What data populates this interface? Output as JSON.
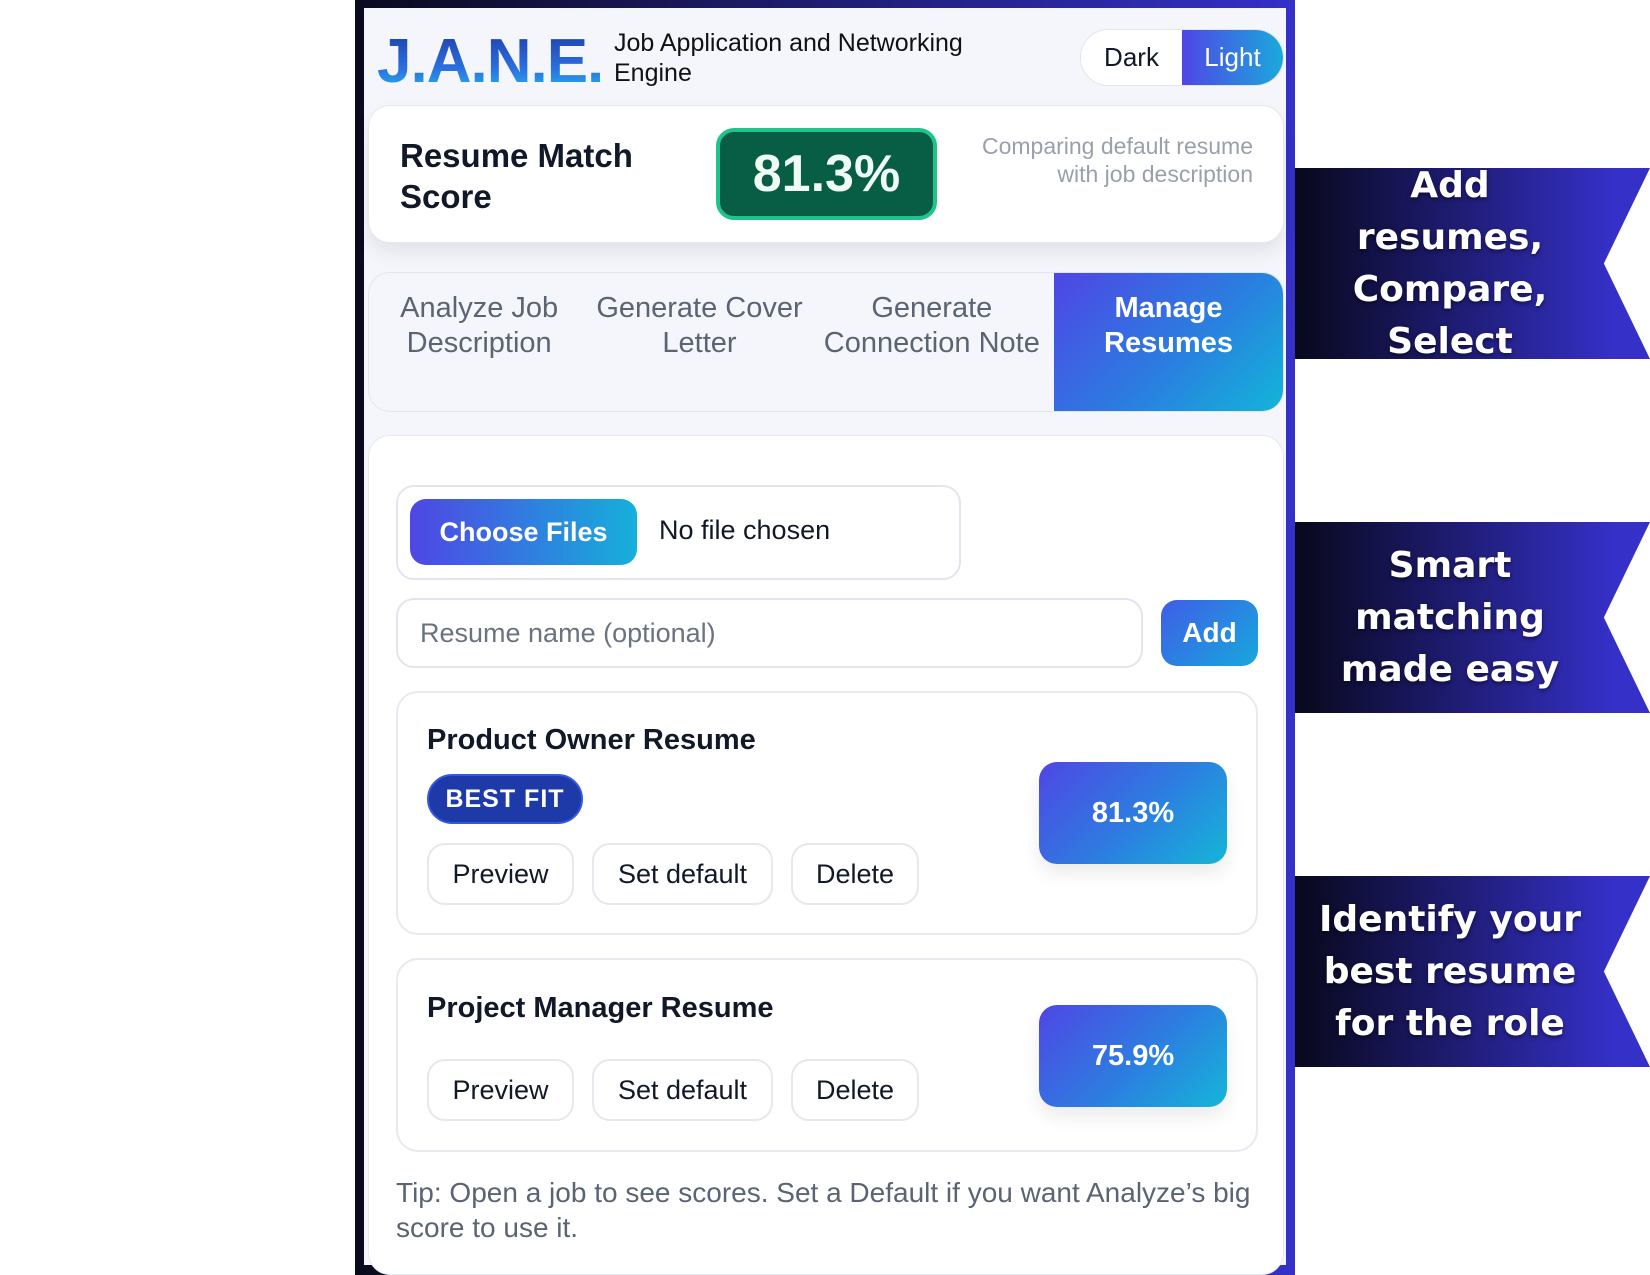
{
  "header": {
    "logo": "J.A.N.E.",
    "subtitle": "Job Application and Networking Engine",
    "theme_toggle": {
      "options": [
        "Dark",
        "Light"
      ],
      "selected": "Light"
    }
  },
  "score": {
    "title": "Resume Match Score",
    "value": "81.3%",
    "note": "Comparing default resume with job description"
  },
  "tabs": [
    {
      "label": "Analyze Job Description"
    },
    {
      "label": "Generate Cover Letter"
    },
    {
      "label": "Generate Connection Note"
    },
    {
      "label": "Manage Resumes",
      "active": true
    }
  ],
  "manage": {
    "choose_files": "Choose Files",
    "no_file": "No file chosen",
    "name_placeholder": "Resume name (optional)",
    "add": "Add",
    "resumes": [
      {
        "name": "Product Owner Resume",
        "badge": "BEST FIT",
        "score": "81.3%",
        "actions": [
          "Preview",
          "Set default",
          "Delete"
        ]
      },
      {
        "name": "Project Manager Resume",
        "score": "75.9%",
        "actions": [
          "Preview",
          "Set default",
          "Delete"
        ]
      }
    ],
    "tip": "Tip: Open a job to see scores. Set a Default if you want Analyze’s big score to use it."
  },
  "banners": [
    "Add resumes, Compare, Select",
    "Smart matching made easy",
    "Identify your best resume for the role"
  ],
  "colors": {
    "accent": "#4f46e5",
    "accent2": "#14b6d8",
    "score_bg": "#075e45"
  }
}
